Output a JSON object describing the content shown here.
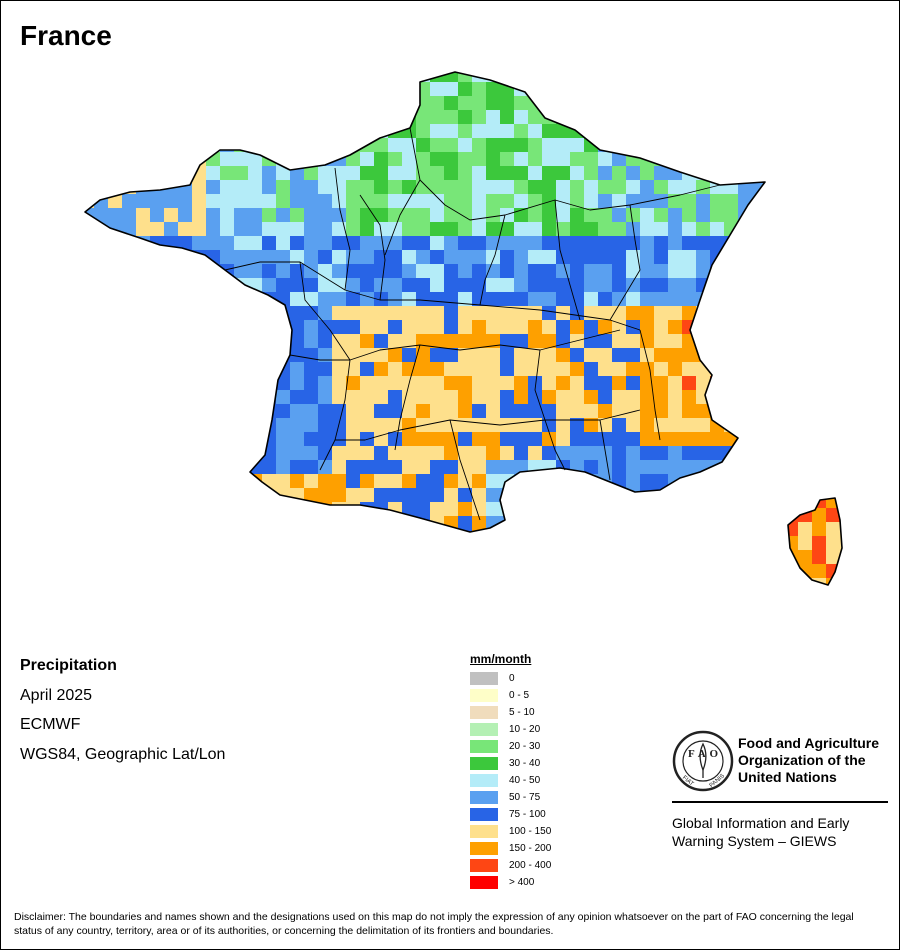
{
  "map": {
    "title": "France",
    "variable": "Precipitation",
    "period": "April 2025",
    "source": "ECMWF",
    "projection": "WGS84, Geographic Lat/Lon"
  },
  "legend": {
    "title": "mm/month",
    "classes": [
      {
        "label": "0",
        "color": "#c0c0c0"
      },
      {
        "label": "0 - 5",
        "color": "#fefec8"
      },
      {
        "label": "5 - 10",
        "color": "#f0dcbc"
      },
      {
        "label": "10 - 20",
        "color": "#b4f0b4"
      },
      {
        "label": "20 - 30",
        "color": "#78e678"
      },
      {
        "label": "30 - 40",
        "color": "#3cc83c"
      },
      {
        "label": "40 - 50",
        "color": "#b4ecf8"
      },
      {
        "label": "50 - 75",
        "color": "#5aa0f0"
      },
      {
        "label": "75 - 100",
        "color": "#2864e6"
      },
      {
        "label": "100 - 150",
        "color": "#fee08c"
      },
      {
        "label": "150 - 200",
        "color": "#fea000"
      },
      {
        "label": "200 - 400",
        "color": "#fe4614"
      },
      {
        "label": "> 400",
        "color": "#fe0000"
      }
    ]
  },
  "organization": {
    "name_lines": [
      "Food and Agriculture",
      "Organization of the",
      "United Nations"
    ],
    "logo_letters": "FAO",
    "motto_left": "FIAT",
    "motto_right": "PANIS"
  },
  "giews": {
    "lines": [
      "Global Information and Early",
      "Warning System – GIEWS"
    ]
  },
  "disclaimer": "Disclaimer: The boundaries and names shown and the designations used on this map do not imply the expression of any opinion whatsoever on the part of FAO concerning the legal status of any country, territory, area or of its authorities, or concerning the delimitation of its frontiers and boundaries."
}
